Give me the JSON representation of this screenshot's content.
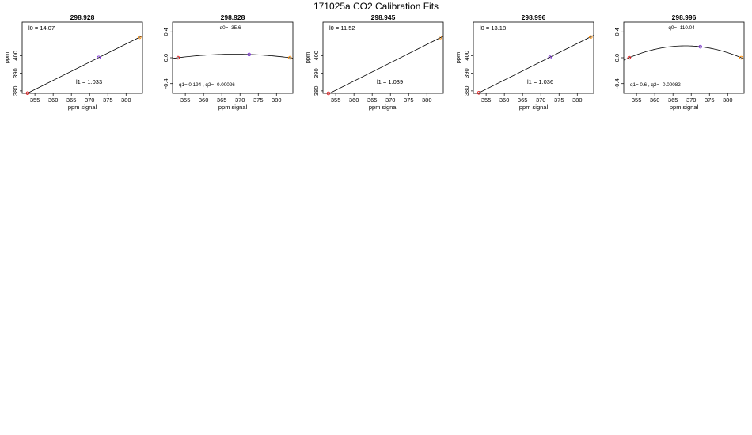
{
  "title": "171025a   CO2 Calibration Fits",
  "chart_data": [
    {
      "type": "line",
      "title": "298.928",
      "xlabel": "ppm signal",
      "ylabel": "ppm",
      "xlim": [
        351.5,
        384.5
      ],
      "ylim": [
        378.6,
        419.0
      ],
      "xticks": [
        "355",
        "360",
        "365",
        "370",
        "375",
        "380"
      ],
      "yticks": [
        "380",
        "390",
        "400"
      ],
      "fit": {
        "kind": "linear",
        "l0": 14.07,
        "l1": 1.033
      },
      "annotations": [
        {
          "text": "l0 =  14.07",
          "pos": "top-left"
        },
        {
          "text": "l1 =  1.033",
          "pos": "bottom-right"
        }
      ],
      "points": [
        {
          "x": 353.0,
          "y": 378.7,
          "color": "#e41a1c"
        },
        {
          "x": 372.5,
          "y": 398.9,
          "color": "#7a2cd6"
        },
        {
          "x": 383.7,
          "y": 410.4,
          "color": "#ff8c00"
        }
      ]
    },
    {
      "type": "line",
      "title": "298.928",
      "xlabel": "ppm signal",
      "ylabel": "",
      "xlim": [
        351.5,
        384.5
      ],
      "ylim": [
        -0.55,
        0.55
      ],
      "xticks": [
        "355",
        "360",
        "365",
        "370",
        "375",
        "380"
      ],
      "yticks": [
        "-0.4",
        "0.0",
        "0.4"
      ],
      "fit": {
        "kind": "quadratic",
        "q0": -35.6,
        "q1": 0.194,
        "q2": -0.00026
      },
      "annotations": [
        {
          "text": "q0= -35.6",
          "pos": "top-center"
        },
        {
          "text": "q1= 0.194  ,  q2= -0.00026",
          "pos": "bottom-left"
        }
      ],
      "points": [
        {
          "x": 353.0,
          "y": 0.0,
          "color": "#e41a1c"
        },
        {
          "x": 372.5,
          "y": 0.05,
          "color": "#7a2cd6"
        },
        {
          "x": 383.7,
          "y": 0.0,
          "color": "#ff8c00"
        }
      ]
    },
    {
      "type": "line",
      "title": "298.945",
      "xlabel": "ppm signal",
      "ylabel": "ppm",
      "xlim": [
        351.5,
        384.5
      ],
      "ylim": [
        378.6,
        419.0
      ],
      "xticks": [
        "355",
        "360",
        "365",
        "370",
        "375",
        "380"
      ],
      "yticks": [
        "380",
        "390",
        "400"
      ],
      "fit": {
        "kind": "linear",
        "l0": 11.52,
        "l1": 1.039
      },
      "annotations": [
        {
          "text": "l0 =  11.52",
          "pos": "top-left"
        },
        {
          "text": "l1 =  1.039",
          "pos": "bottom-right"
        }
      ],
      "points": [
        {
          "x": 353.0,
          "y": 378.6,
          "color": "#e41a1c"
        },
        {
          "x": 383.7,
          "y": 410.3,
          "color": "#ff8c00"
        }
      ]
    },
    {
      "type": "line",
      "title": "298.996",
      "xlabel": "ppm signal",
      "ylabel": "ppm",
      "xlim": [
        351.5,
        384.5
      ],
      "ylim": [
        378.6,
        419.0
      ],
      "xticks": [
        "355",
        "360",
        "365",
        "370",
        "375",
        "380"
      ],
      "yticks": [
        "380",
        "390",
        "400"
      ],
      "fit": {
        "kind": "linear",
        "l0": 13.18,
        "l1": 1.036
      },
      "annotations": [
        {
          "text": "l0 =  13.18",
          "pos": "top-left"
        },
        {
          "text": "l1 =  1.036",
          "pos": "bottom-right"
        }
      ],
      "points": [
        {
          "x": 353.0,
          "y": 378.9,
          "color": "#e41a1c"
        },
        {
          "x": 372.5,
          "y": 399.0,
          "color": "#7a2cd6"
        },
        {
          "x": 383.7,
          "y": 410.6,
          "color": "#ff8c00"
        }
      ]
    },
    {
      "type": "line",
      "title": "298.996",
      "xlabel": "ppm signal",
      "ylabel": "",
      "xlim": [
        351.5,
        384.5
      ],
      "ylim": [
        -0.55,
        0.55
      ],
      "xticks": [
        "355",
        "360",
        "365",
        "370",
        "375",
        "380"
      ],
      "yticks": [
        "-0.4",
        "0.0",
        "0.4"
      ],
      "fit": {
        "kind": "quadratic",
        "q0": -110.04,
        "q1": 0.6,
        "q2": -0.00082
      },
      "annotations": [
        {
          "text": "q0= -110.04",
          "pos": "top-center"
        },
        {
          "text": "q1= 0.6  ,  q2= -0.00082",
          "pos": "bottom-left"
        }
      ],
      "points": [
        {
          "x": 353.0,
          "y": 0.0,
          "color": "#e41a1c"
        },
        {
          "x": 372.5,
          "y": 0.17,
          "color": "#7a2cd6"
        },
        {
          "x": 383.7,
          "y": 0.0,
          "color": "#ff8c00"
        }
      ]
    }
  ]
}
